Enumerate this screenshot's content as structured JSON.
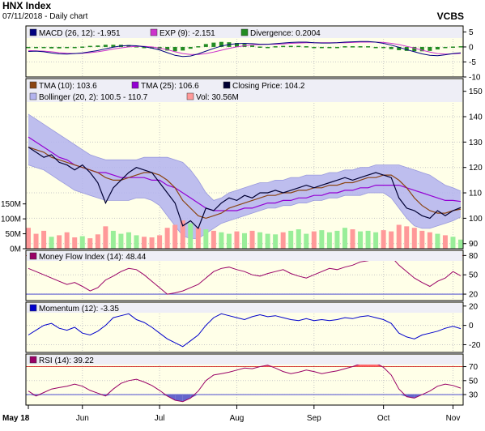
{
  "header": {
    "title": "HNX Index",
    "subtitle": "07/11/2018 - Daily chart",
    "brand": "VCBS"
  },
  "colors": {
    "panel_bg": "#FFFFE8",
    "frame": "#000000",
    "macd": "#000080",
    "signal": "#CC33CC",
    "divergence": "#228B22",
    "tma10": "#8B4513",
    "tma25": "#9400D3",
    "close": "#000033",
    "bollinger_fill": "#B3B3EE",
    "vol_up": "#99EE99",
    "vol_down": "#FF9999",
    "mfi": "#990066",
    "momentum": "#0000CC",
    "rsi": "#990066",
    "ref_line": "#CC0000",
    "rsi_overbought_fill": "#FF6666",
    "rsi_oversold_fill": "#6666CC"
  },
  "x_axis": {
    "labels": [
      "May 18",
      "Jun",
      "Jul",
      "Aug",
      "Sep",
      "Oct",
      "Nov"
    ]
  },
  "chart_data": [
    {
      "type": "line",
      "panel": "macd",
      "legend": [
        {
          "label": "MACD (26, 12): -1.951",
          "icon": "macd-legend-icon"
        },
        {
          "label": "EXP (9): -2.151",
          "icon": "signal-legend-icon"
        },
        {
          "label": "Divergence: 0.2004",
          "icon": "divergence-legend-icon"
        }
      ],
      "y_ticks": [
        "5",
        "0",
        "-5",
        "-10"
      ],
      "ylim": [
        -10,
        7
      ],
      "macd": [
        -1.5,
        -1.4,
        -1.6,
        -2.0,
        -2.3,
        -2.4,
        -2.2,
        -2.0,
        -1.6,
        -1.2,
        -0.6,
        -0.1,
        0.3,
        0.5,
        0.4,
        0.1,
        -0.4,
        -1.0,
        -1.9,
        -2.8,
        -3.2,
        -3.0,
        -2.3,
        -1.4,
        -0.5,
        0.3,
        0.8,
        1.1,
        1.2,
        1.1,
        0.9,
        0.9,
        1.1,
        1.3,
        1.5,
        1.6,
        1.6,
        1.4,
        1.3,
        1.3,
        1.4,
        1.6,
        1.7,
        1.8,
        1.8,
        1.6,
        1.2,
        0.6,
        -0.1,
        -0.9,
        -1.6,
        -2.3,
        -2.8,
        -2.9,
        -2.6,
        -2.2,
        -1.95
      ],
      "signal": [
        -1.2,
        -1.3,
        -1.4,
        -1.6,
        -1.9,
        -2.1,
        -2.2,
        -2.1,
        -1.9,
        -1.6,
        -1.2,
        -0.7,
        -0.3,
        0.0,
        0.2,
        0.2,
        0.0,
        -0.4,
        -0.9,
        -1.6,
        -2.2,
        -2.5,
        -2.5,
        -2.2,
        -1.7,
        -1.1,
        -0.5,
        0.0,
        0.4,
        0.7,
        0.8,
        0.9,
        0.9,
        1.0,
        1.2,
        1.3,
        1.4,
        1.4,
        1.4,
        1.4,
        1.4,
        1.4,
        1.5,
        1.6,
        1.6,
        1.6,
        1.5,
        1.2,
        0.8,
        0.2,
        -0.4,
        -1.1,
        -1.7,
        -2.2,
        -2.4,
        -2.3,
        -2.15
      ]
    },
    {
      "type": "line",
      "panel": "price",
      "legend": [
        {
          "label": "TMA (10): 103.6",
          "icon": "tma10-legend-icon"
        },
        {
          "label": "TMA (25): 106.6",
          "icon": "tma25-legend-icon"
        },
        {
          "label": "Closing Price: 104.2",
          "icon": "close-legend-icon"
        },
        {
          "label": "Bollinger (20, 2): 100.5 - 110.7",
          "icon": "bollinger-legend-icon"
        },
        {
          "label": "Vol: 30.56M",
          "icon": "volume-legend-icon"
        }
      ],
      "y_ticks": [
        "150",
        "140",
        "130",
        "120",
        "110",
        "100",
        "90"
      ],
      "ylim": [
        88,
        155
      ],
      "volume_ticks": [
        "150M",
        "100M",
        "50M",
        "0M"
      ],
      "volume_max": 160,
      "close": [
        128,
        126,
        124,
        125,
        122,
        121,
        119,
        121,
        118,
        114,
        106,
        112,
        115,
        118,
        120,
        119,
        118,
        114,
        110,
        106,
        97,
        99,
        96,
        104,
        103,
        106,
        108,
        107,
        109,
        108,
        110,
        110,
        111,
        110,
        111,
        112,
        113,
        112,
        113,
        114,
        115,
        116,
        115,
        116,
        117,
        118,
        117,
        116,
        108,
        104,
        103,
        101,
        100,
        103,
        101,
        103,
        104.2
      ],
      "tma10": [
        128,
        127,
        126,
        124,
        123,
        122,
        121,
        120,
        119,
        118,
        116,
        115,
        115,
        116,
        117,
        118,
        118,
        117,
        115,
        112,
        107,
        104,
        101,
        100,
        101,
        102,
        104,
        105,
        106,
        107,
        108,
        109,
        109,
        110,
        110,
        111,
        111,
        112,
        112,
        113,
        113,
        114,
        114,
        115,
        116,
        116,
        117,
        117,
        115,
        112,
        108,
        105,
        103,
        102,
        102,
        103,
        103.6
      ],
      "tma25": [
        132,
        130,
        128,
        126,
        124,
        123,
        121,
        120,
        119,
        118,
        118,
        117,
        116,
        116,
        116,
        116,
        115,
        115,
        113,
        112,
        110,
        108,
        106,
        104,
        103,
        103,
        103,
        103,
        104,
        104,
        105,
        106,
        106,
        107,
        107,
        108,
        108,
        109,
        109,
        110,
        110,
        111,
        111,
        112,
        112,
        113,
        113,
        113,
        113,
        112,
        111,
        110,
        109,
        108,
        107,
        107,
        106.6
      ],
      "boll_upper": [
        141,
        139,
        137,
        135,
        133,
        131,
        129,
        127,
        125,
        124,
        123,
        123,
        123,
        123,
        123,
        124,
        124,
        124,
        124,
        123,
        122,
        119,
        115,
        110,
        107,
        108,
        110,
        111,
        112,
        113,
        114,
        114,
        115,
        115,
        116,
        116,
        117,
        117,
        117,
        118,
        118,
        119,
        119,
        120,
        120,
        121,
        121,
        121,
        121,
        120,
        119,
        118,
        117,
        115,
        113,
        112,
        110.7
      ],
      "boll_lower": [
        121,
        120,
        119,
        117,
        115,
        113,
        111,
        110,
        109,
        108,
        107,
        107,
        107,
        107,
        108,
        108,
        107,
        105,
        101,
        97,
        93,
        92,
        92,
        94,
        96,
        98,
        99,
        100,
        101,
        102,
        103,
        104,
        104,
        105,
        105,
        106,
        106,
        107,
        107,
        108,
        108,
        109,
        109,
        109,
        110,
        110,
        110,
        108,
        104,
        100,
        97,
        96,
        96,
        97,
        98,
        99,
        100.5
      ],
      "volume": [
        70,
        50,
        60,
        40,
        45,
        55,
        38,
        42,
        35,
        48,
        75,
        60,
        50,
        55,
        45,
        40,
        38,
        45,
        70,
        80,
        95,
        85,
        70,
        65,
        60,
        55,
        50,
        58,
        52,
        60,
        55,
        50,
        48,
        55,
        60,
        65,
        50,
        58,
        62,
        55,
        60,
        70,
        65,
        58,
        60,
        55,
        62,
        58,
        80,
        75,
        70,
        60,
        55,
        50,
        45,
        40,
        30.56
      ],
      "volume_direction": [
        0,
        0,
        0,
        1,
        0,
        0,
        0,
        1,
        0,
        0,
        0,
        1,
        1,
        1,
        1,
        0,
        0,
        0,
        0,
        0,
        0,
        1,
        0,
        1,
        0,
        1,
        1,
        0,
        1,
        0,
        1,
        1,
        1,
        0,
        1,
        1,
        1,
        0,
        1,
        1,
        1,
        1,
        0,
        1,
        1,
        1,
        0,
        0,
        0,
        0,
        0,
        0,
        0,
        1,
        0,
        1,
        1
      ]
    },
    {
      "type": "line",
      "panel": "mfi",
      "legend": [
        {
          "label": "Money Flow Index (14): 48.44",
          "icon": "mfi-legend-icon"
        }
      ],
      "y_ticks": [
        "80",
        "50",
        "20"
      ],
      "ref_levels": [
        80,
        20
      ],
      "ylim": [
        10,
        88
      ],
      "values": [
        60,
        55,
        50,
        45,
        40,
        35,
        38,
        32,
        25,
        30,
        42,
        48,
        55,
        60,
        58,
        50,
        40,
        30,
        20,
        22,
        25,
        30,
        35,
        45,
        55,
        60,
        62,
        58,
        55,
        50,
        48,
        52,
        55,
        58,
        52,
        48,
        45,
        50,
        55,
        60,
        58,
        62,
        65,
        70,
        72,
        75,
        80,
        78,
        65,
        55,
        45,
        38,
        32,
        40,
        45,
        55,
        48.44
      ]
    },
    {
      "type": "line",
      "panel": "momentum",
      "legend": [
        {
          "label": "Momentum (12): -3.35",
          "icon": "momentum-legend-icon"
        }
      ],
      "y_ticks": [
        "20",
        "0",
        "-20"
      ],
      "ylim": [
        -28,
        24
      ],
      "values": [
        -10,
        -5,
        0,
        2,
        -3,
        -5,
        -2,
        -8,
        -10,
        -6,
        0,
        8,
        10,
        12,
        6,
        3,
        -2,
        -8,
        -14,
        -18,
        -22,
        -16,
        -10,
        0,
        8,
        12,
        10,
        8,
        6,
        9,
        11,
        9,
        10,
        8,
        6,
        5,
        7,
        5,
        6,
        5,
        6,
        8,
        7,
        9,
        10,
        8,
        6,
        2,
        -8,
        -12,
        -14,
        -10,
        -8,
        -6,
        -3,
        -1,
        -3.35
      ]
    },
    {
      "type": "line",
      "panel": "rsi",
      "legend": [
        {
          "label": "RSI (14): 39.22",
          "icon": "rsi-legend-icon"
        }
      ],
      "y_ticks": [
        "70",
        "50",
        "30"
      ],
      "ref_levels": [
        70,
        30
      ],
      "ylim": [
        15,
        88
      ],
      "values": [
        35,
        28,
        33,
        38,
        40,
        42,
        45,
        42,
        36,
        32,
        28,
        38,
        46,
        50,
        52,
        48,
        43,
        36,
        28,
        22,
        20,
        25,
        35,
        50,
        58,
        60,
        62,
        65,
        68,
        67,
        70,
        72,
        68,
        63,
        60,
        62,
        65,
        63,
        60,
        62,
        64,
        67,
        70,
        74,
        78,
        75,
        69,
        58,
        38,
        27,
        25,
        30,
        35,
        42,
        45,
        43,
        39.22
      ]
    }
  ]
}
